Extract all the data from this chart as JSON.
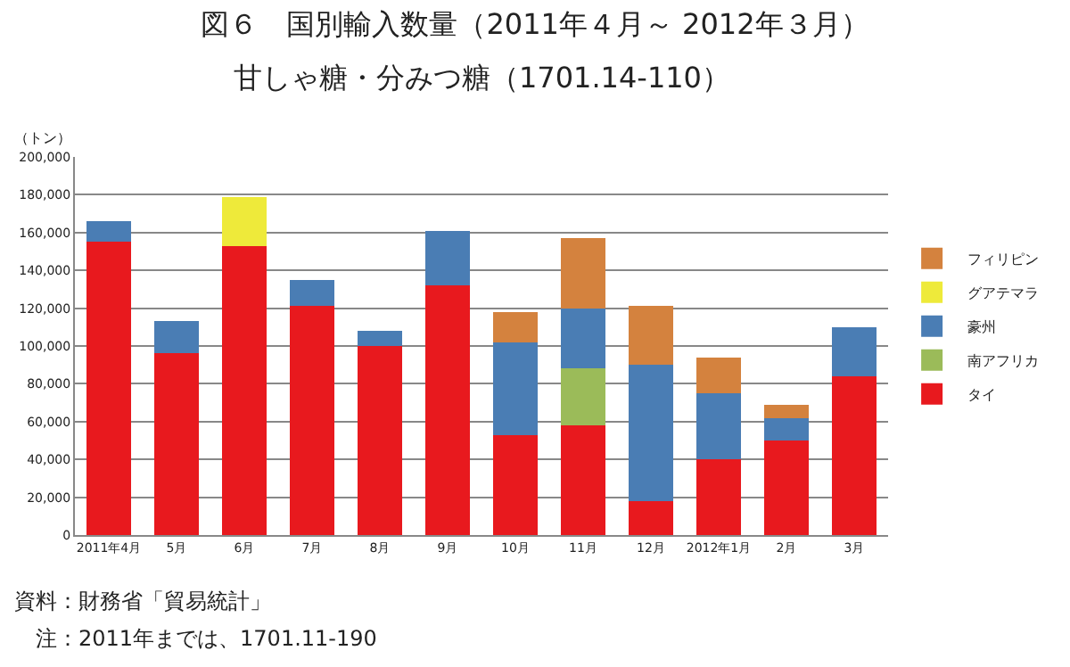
{
  "chart_data": {
    "type": "bar",
    "stacked": true,
    "title": "図６　国別輸入数量（2011年４月～ 2012年３月）",
    "subtitle": "甘しゃ糖・分みつ糖（1701.14-110）",
    "ylabel": "（トン）",
    "categories": [
      "2011年4月",
      "5月",
      "6月",
      "7月",
      "8月",
      "9月",
      "10月",
      "11月",
      "12月",
      "2012年1月",
      "2月",
      "3月"
    ],
    "series": [
      {
        "name": "タイ",
        "color": "#e8191e",
        "values": [
          155000,
          96000,
          153000,
          121000,
          100000,
          132000,
          53000,
          58000,
          18000,
          40000,
          50000,
          84000
        ]
      },
      {
        "name": "南アフリカ",
        "color": "#9bbb59",
        "values": [
          null,
          null,
          null,
          null,
          null,
          null,
          null,
          30000,
          null,
          null,
          null,
          null
        ]
      },
      {
        "name": "豪州",
        "color": "#4a7db4",
        "values": [
          11000,
          17000,
          null,
          14000,
          8000,
          29000,
          49000,
          32000,
          72000,
          35000,
          12000,
          26000
        ]
      },
      {
        "name": "グアテマラ",
        "color": "#eeea3a",
        "values": [
          null,
          null,
          26000,
          null,
          null,
          null,
          null,
          null,
          null,
          null,
          null,
          null
        ]
      },
      {
        "name": "フィリピン",
        "color": "#d4823e",
        "values": [
          null,
          null,
          null,
          null,
          null,
          null,
          16000,
          37000,
          31000,
          19000,
          7000,
          null
        ]
      }
    ],
    "ylim": [
      0,
      200000
    ],
    "yticks": [
      {
        "value": 0,
        "label": "0"
      },
      {
        "value": 20000,
        "label": "20,000"
      },
      {
        "value": 40000,
        "label": "40,000"
      },
      {
        "value": 60000,
        "label": "60,000"
      },
      {
        "value": 80000,
        "label": "80,000"
      },
      {
        "value": 100000,
        "label": "100,000"
      },
      {
        "value": 120000,
        "label": "120,000"
      },
      {
        "value": 140000,
        "label": "140,000"
      },
      {
        "value": 160000,
        "label": "160,000"
      },
      {
        "value": 180000,
        "label": "180,000"
      },
      {
        "value": 200000,
        "label": "200,000"
      }
    ],
    "grid": "y",
    "legend": "right",
    "annotations": [
      "資料：財務省「貿易統計」",
      "　注：2011年までは、1701.11-190"
    ]
  }
}
